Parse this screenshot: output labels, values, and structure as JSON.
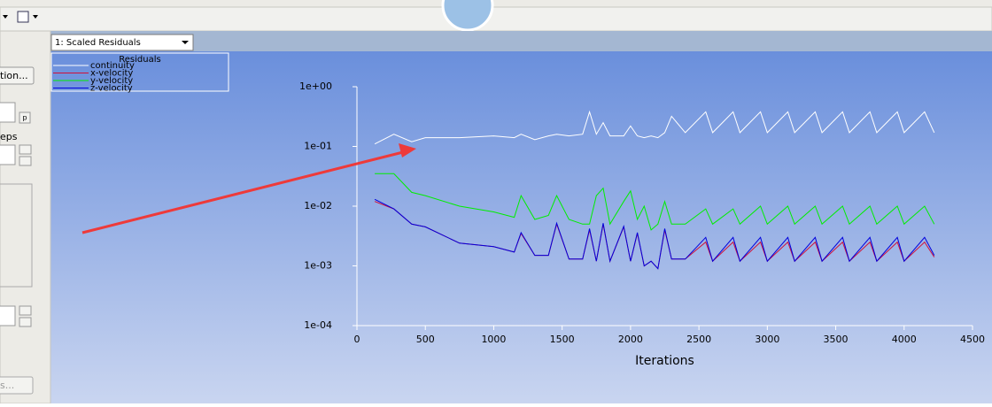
{
  "ui": {
    "panel_texts": [
      "tion...",
      "eps",
      "s...",
      "p"
    ],
    "dropdown": "1: Scaled Residuals"
  },
  "chart_data": {
    "type": "line",
    "title": "Residuals",
    "xlabel": "Iterations",
    "yscale": "log",
    "xlim": [
      0,
      4500
    ],
    "xticks": [
      0,
      500,
      1000,
      1500,
      2000,
      2500,
      3000,
      3500,
      4000,
      4500
    ],
    "ylim": [
      0.0001,
      1
    ],
    "yticks": [
      {
        "value": 0.0001,
        "label": "1e-04"
      },
      {
        "value": 0.001,
        "label": "1e-03"
      },
      {
        "value": 0.01,
        "label": "1e-02"
      },
      {
        "value": 0.1,
        "label": "1e-01"
      },
      {
        "value": 1,
        "label": "1e+00"
      }
    ],
    "x": [
      130,
      270,
      400,
      500,
      750,
      1000,
      1150,
      1200,
      1300,
      1400,
      1460,
      1550,
      1650,
      1700,
      1750,
      1800,
      1850,
      1950,
      2000,
      2050,
      2100,
      2150,
      2200,
      2250,
      2300,
      2400,
      2550,
      2600,
      2750,
      2800,
      2950,
      3000,
      3150,
      3200,
      3350,
      3400,
      3550,
      3600,
      3750,
      3800,
      3950,
      4000,
      4150,
      4220
    ],
    "series": [
      {
        "name": "continuity",
        "color": "#ffffff",
        "values": [
          0.11,
          0.16,
          0.12,
          0.14,
          0.14,
          0.15,
          0.14,
          0.16,
          0.13,
          0.15,
          0.16,
          0.15,
          0.16,
          0.38,
          0.16,
          0.25,
          0.15,
          0.15,
          0.22,
          0.15,
          0.14,
          0.15,
          0.14,
          0.17,
          0.32,
          0.17,
          0.38,
          0.17,
          0.38,
          0.17,
          0.38,
          0.17,
          0.38,
          0.17,
          0.38,
          0.17,
          0.38,
          0.17,
          0.38,
          0.17,
          0.38,
          0.17,
          0.38,
          0.17
        ]
      },
      {
        "name": "x-velocity",
        "color": "#d0103a",
        "values": [
          0.012,
          0.009,
          0.005,
          0.0045,
          0.0024,
          0.0021,
          0.0017,
          0.0035,
          0.0015,
          0.0015,
          0.005,
          0.0013,
          0.0013,
          0.004,
          0.0012,
          0.005,
          0.0012,
          0.0045,
          0.0012,
          0.0035,
          0.001,
          0.0012,
          0.0009,
          0.004,
          0.0013,
          0.0013,
          0.0025,
          0.0012,
          0.0025,
          0.0012,
          0.0025,
          0.0012,
          0.0025,
          0.0012,
          0.0025,
          0.0012,
          0.0025,
          0.0012,
          0.0025,
          0.0012,
          0.0025,
          0.0012,
          0.0025,
          0.0014
        ]
      },
      {
        "name": "y-velocity",
        "color": "#00ee00",
        "values": [
          0.035,
          0.035,
          0.017,
          0.015,
          0.01,
          0.008,
          0.0065,
          0.015,
          0.006,
          0.007,
          0.015,
          0.006,
          0.005,
          0.005,
          0.015,
          0.02,
          0.005,
          0.012,
          0.018,
          0.006,
          0.01,
          0.004,
          0.005,
          0.012,
          0.005,
          0.005,
          0.009,
          0.005,
          0.009,
          0.005,
          0.01,
          0.005,
          0.01,
          0.005,
          0.01,
          0.005,
          0.01,
          0.005,
          0.01,
          0.005,
          0.01,
          0.005,
          0.01,
          0.005
        ]
      },
      {
        "name": "z-velocity",
        "color": "#0000dd",
        "values": [
          0.013,
          0.009,
          0.005,
          0.0045,
          0.0024,
          0.0021,
          0.0017,
          0.0036,
          0.0015,
          0.0015,
          0.0052,
          0.0013,
          0.0013,
          0.0042,
          0.0012,
          0.0052,
          0.0012,
          0.0046,
          0.0012,
          0.0036,
          0.001,
          0.0012,
          0.0009,
          0.0042,
          0.0013,
          0.0013,
          0.003,
          0.0012,
          0.003,
          0.0012,
          0.003,
          0.0012,
          0.003,
          0.0012,
          0.003,
          0.0012,
          0.003,
          0.0012,
          0.003,
          0.0012,
          0.003,
          0.0012,
          0.003,
          0.0015
        ]
      }
    ]
  }
}
